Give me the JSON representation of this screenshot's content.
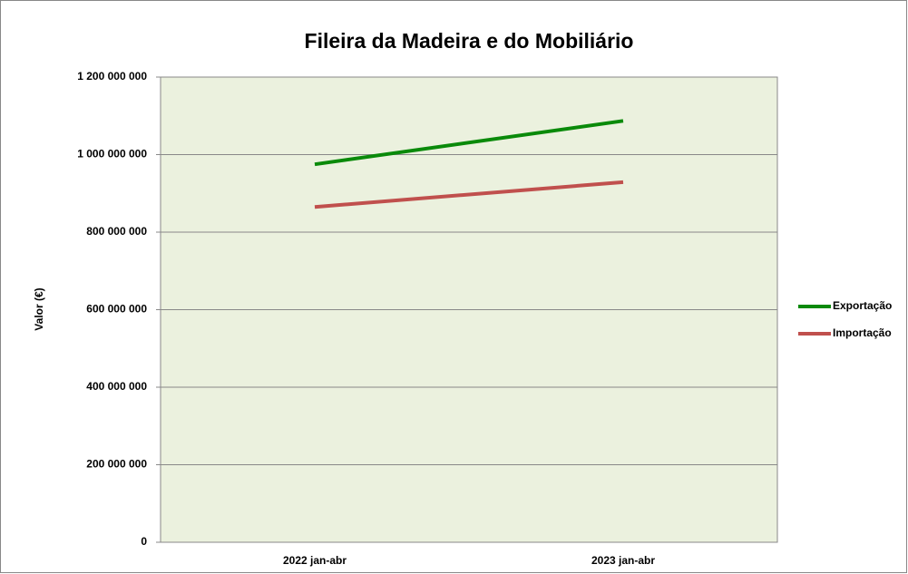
{
  "chart_data": {
    "type": "line",
    "title": "Fileira da Madeira e do Mobiliário",
    "ylabel": "Valor (€)",
    "categories": [
      "2022 jan-abr",
      "2023 jan-abr"
    ],
    "series": [
      {
        "name": "Exportação",
        "color": "#0a8a0a",
        "values": [
          975000000,
          1087000000
        ]
      },
      {
        "name": "Importação",
        "color": "#c0504d",
        "values": [
          865000000,
          929000000
        ]
      }
    ],
    "ylim": [
      0,
      1200000000
    ],
    "yticks": [
      0,
      {
        "value": 200000000,
        "label": "200 000 000"
      },
      {
        "value": 400000000,
        "label": "400 000 000"
      },
      {
        "value": 600000000,
        "label": "600 000 000"
      },
      {
        "value": 800000000,
        "label": "800 000 000"
      },
      {
        "value": 1000000000,
        "label": "1 000 000 000"
      },
      {
        "value": 1200000000,
        "label": "1 200 000 000"
      }
    ],
    "grid": true,
    "legend": "right",
    "plot_background": "#ebf1de"
  }
}
